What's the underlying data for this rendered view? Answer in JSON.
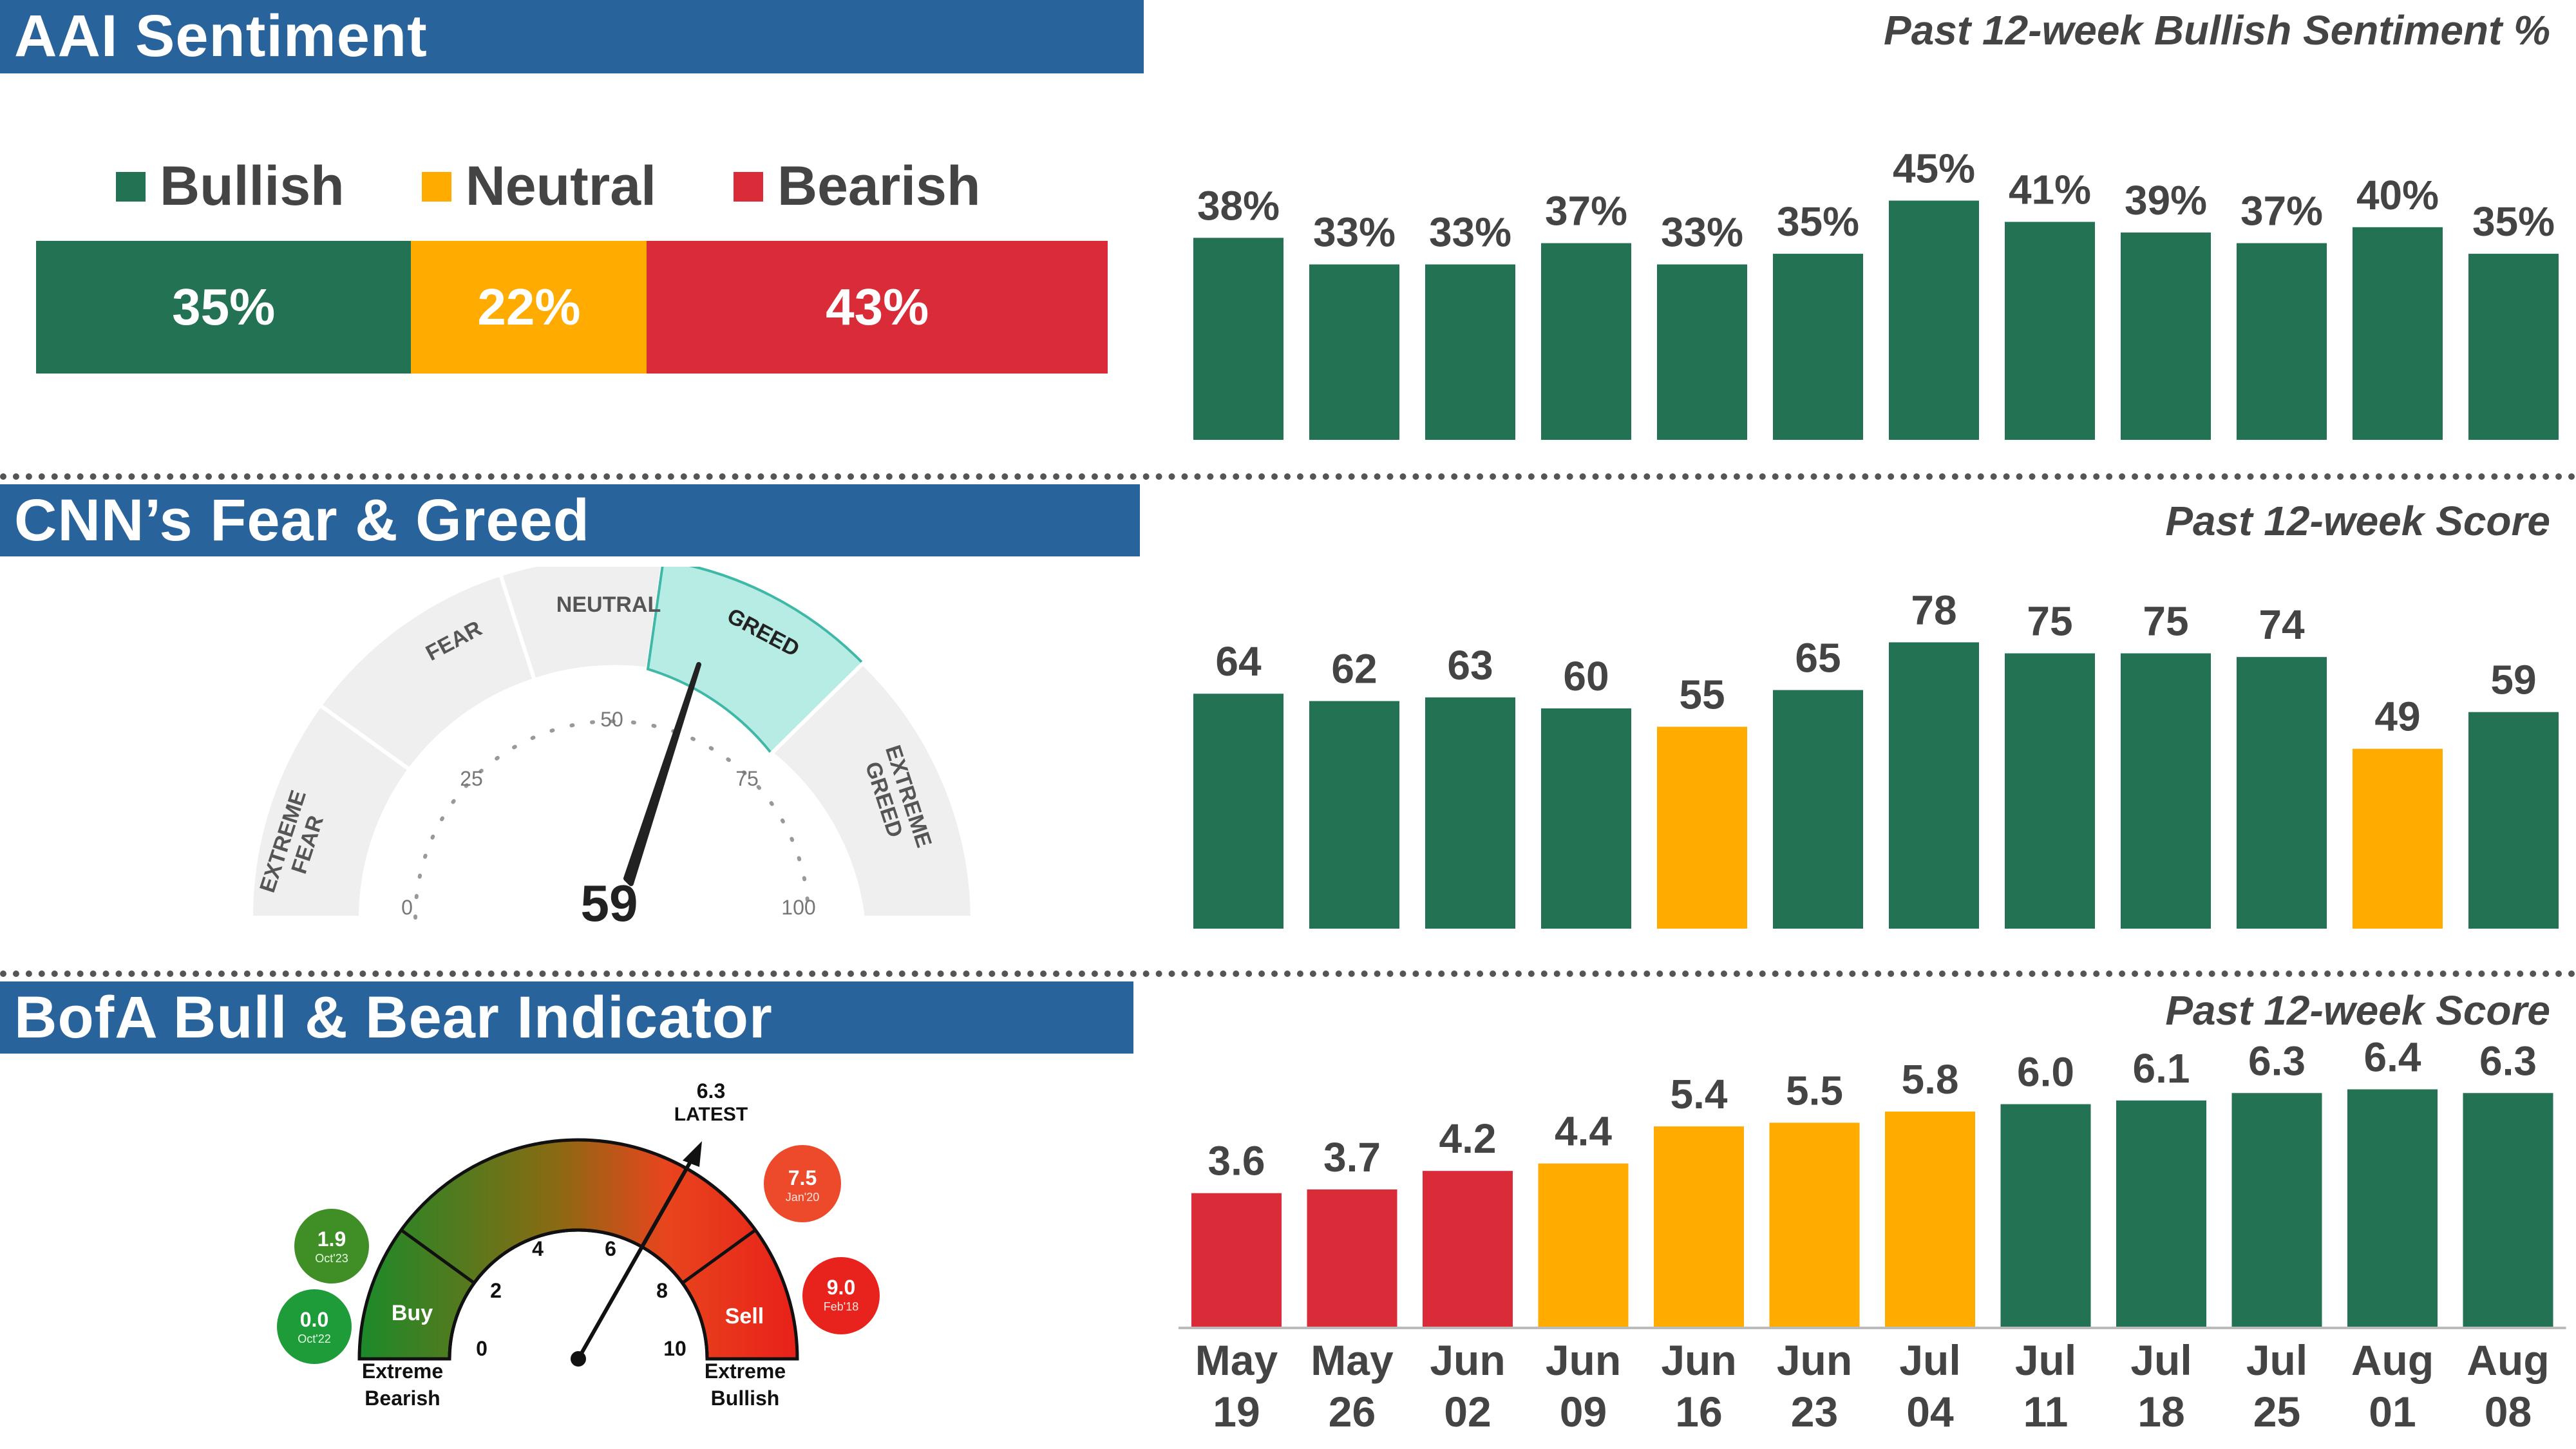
{
  "colors": {
    "green": "#237254",
    "orange": "#ffab00",
    "red": "#da2c38",
    "band": "#29639c"
  },
  "aai": {
    "title": "AAI Sentiment",
    "subtitle": "Past 12-week Bullish Sentiment %",
    "legend": {
      "bullish": "Bullish",
      "neutral": "Neutral",
      "bearish": "Bearish"
    },
    "split": {
      "bullish": "35%",
      "neutral": "22%",
      "bearish": "43%"
    }
  },
  "cnn": {
    "title": "CNN’s Fear & Greed",
    "subtitle": "Past 12-week Score",
    "gauge": {
      "labels": {
        "extreme_fear_1": "EXTREME",
        "extreme_fear_2": "FEAR",
        "fear": "FEAR",
        "neutral": "NEUTRAL",
        "greed": "GREED",
        "extreme_greed_1": "EXTREME",
        "extreme_greed_2": "GREED"
      },
      "ticks": {
        "t0": "0",
        "t25": "25",
        "t50": "50",
        "t75": "75",
        "t100": "100"
      },
      "value_label": "59"
    }
  },
  "bofa": {
    "title": "BofA Bull & Bear Indicator",
    "subtitle": "Past 12-week Score",
    "gauge": {
      "latest_value": "6.3",
      "latest_label": "LATEST",
      "ticks": {
        "t0": "0",
        "t2": "2",
        "t4": "4",
        "t6": "6",
        "t8": "8",
        "t10": "10"
      },
      "buy": "Buy",
      "sell": "Sell",
      "extreme_bearish_1": "Extreme",
      "extreme_bearish_2": "Bearish",
      "extreme_bullish_1": "Extreme",
      "extreme_bullish_2": "Bullish",
      "bubbles": [
        {
          "value": "1.9",
          "date": "Oct'23",
          "color": "#3f8f26"
        },
        {
          "value": "0.0",
          "date": "Oct'22",
          "color": "#1f9c3a"
        },
        {
          "value": "7.5",
          "date": "Jan'20",
          "color": "#ec4a2a"
        },
        {
          "value": "9.0",
          "date": "Feb'18",
          "color": "#e8231d"
        }
      ]
    }
  },
  "chart_data": [
    {
      "type": "bar",
      "title": "Past 12-week Bullish Sentiment %",
      "categories": [
        "May 19",
        "May 26",
        "Jun 02",
        "Jun 09",
        "Jun 16",
        "Jun 23",
        "Jul 04",
        "Jul 11",
        "Jul 18",
        "Jul 25",
        "Aug 01",
        "Aug 08"
      ],
      "values": [
        38,
        33,
        33,
        37,
        33,
        35,
        45,
        41,
        39,
        37,
        40,
        35
      ],
      "labels": [
        "38%",
        "33%",
        "33%",
        "37%",
        "33%",
        "35%",
        "45%",
        "41%",
        "39%",
        "37%",
        "40%",
        "35%"
      ],
      "bar_colors": [
        "green",
        "green",
        "green",
        "green",
        "green",
        "green",
        "green",
        "green",
        "green",
        "green",
        "green",
        "green"
      ],
      "ylim": [
        0,
        47
      ]
    },
    {
      "type": "bar",
      "title": "Past 12-week Score",
      "categories": [
        "May 19",
        "May 26",
        "Jun 02",
        "Jun 09",
        "Jun 16",
        "Jun 23",
        "Jul 04",
        "Jul 11",
        "Jul 18",
        "Jul 25",
        "Aug 01",
        "Aug 08"
      ],
      "values": [
        64,
        62,
        63,
        60,
        55,
        65,
        78,
        75,
        75,
        74,
        49,
        59
      ],
      "labels": [
        "64",
        "62",
        "63",
        "60",
        "55",
        "65",
        "78",
        "75",
        "75",
        "74",
        "49",
        "59"
      ],
      "bar_colors": [
        "green",
        "green",
        "green",
        "green",
        "orange",
        "green",
        "green",
        "green",
        "green",
        "green",
        "orange",
        "green"
      ],
      "ylim": [
        0,
        80
      ]
    },
    {
      "type": "bar",
      "title": "Past 12-week Score",
      "categories": [
        "May 19",
        "May 26",
        "Jun 02",
        "Jun 09",
        "Jun 16",
        "Jun 23",
        "Jul 04",
        "Jul 11",
        "Jul 18",
        "Jul 25",
        "Aug 01",
        "Aug 08"
      ],
      "x_labels": [
        [
          "May",
          "19"
        ],
        [
          "May",
          "26"
        ],
        [
          "Jun",
          "02"
        ],
        [
          "Jun",
          "09"
        ],
        [
          "Jun",
          "16"
        ],
        [
          "Jun",
          "23"
        ],
        [
          "Jul",
          "04"
        ],
        [
          "Jul",
          "11"
        ],
        [
          "Jul",
          "18"
        ],
        [
          "Jul",
          "25"
        ],
        [
          "Aug",
          "01"
        ],
        [
          "Aug",
          "08"
        ]
      ],
      "values": [
        3.6,
        3.7,
        4.2,
        4.4,
        5.4,
        5.5,
        5.8,
        6.0,
        6.1,
        6.3,
        6.4,
        6.3
      ],
      "labels": [
        "3.6",
        "3.7",
        "4.2",
        "4.4",
        "5.4",
        "5.5",
        "5.8",
        "6.0",
        "6.1",
        "6.3",
        "6.4",
        "6.3"
      ],
      "bar_colors": [
        "red",
        "red",
        "red",
        "orange",
        "orange",
        "orange",
        "orange",
        "green",
        "green",
        "green",
        "green",
        "green"
      ],
      "ylim": [
        0,
        6.6
      ]
    }
  ]
}
